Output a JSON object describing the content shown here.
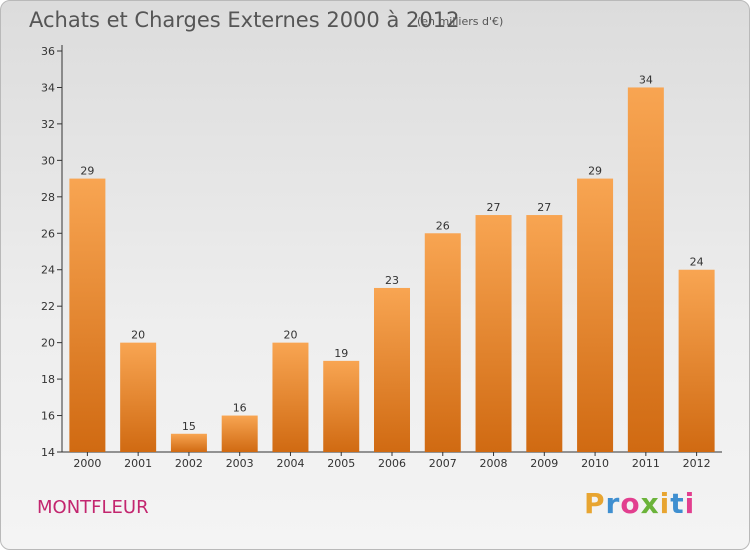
{
  "header": {
    "title": "Achats et Charges Externes 2000 à 2012",
    "subtitle": "(en milliers d'€)"
  },
  "footer": {
    "commune": "MONTFLEUR",
    "brand_letters": [
      "P",
      "r",
      "o",
      "x",
      "i",
      "t",
      "i"
    ],
    "brand_colors": [
      "#e8a531",
      "#3f8fd0",
      "#e23f8f",
      "#6bb33a",
      "#e8a531",
      "#3f8fd0",
      "#e23f8f"
    ]
  },
  "chart_data": {
    "type": "bar",
    "categories": [
      "2000",
      "2001",
      "2002",
      "2003",
      "2004",
      "2005",
      "2006",
      "2007",
      "2008",
      "2009",
      "2010",
      "2011",
      "2012"
    ],
    "values": [
      29,
      20,
      15,
      16,
      20,
      19,
      23,
      26,
      27,
      27,
      29,
      34,
      24
    ],
    "ylim": [
      14,
      36
    ],
    "yticks": [
      14,
      16,
      18,
      20,
      22,
      24,
      26,
      28,
      30,
      32,
      34,
      36
    ],
    "grid": false,
    "bar_color_top": "#f8a552",
    "bar_color_bottom": "#d06a12"
  }
}
